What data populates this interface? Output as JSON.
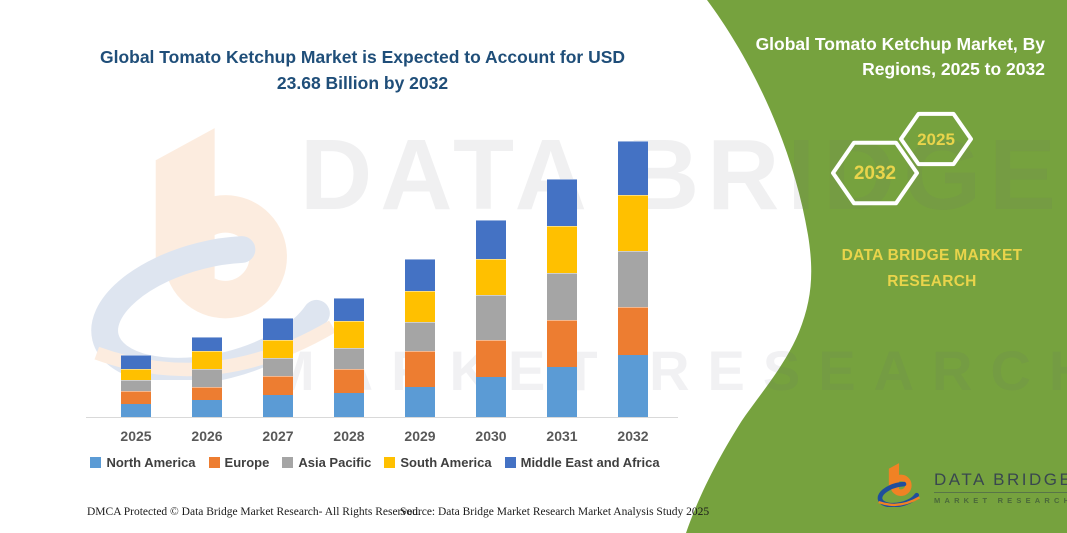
{
  "headline": {
    "line1": "Global Tomato Ketchup Market is Expected to Account for USD",
    "line2": "23.68 Billion by 2032",
    "color": "#1F4E79"
  },
  "banner": {
    "title_line1": "Global Tomato Ketchup Market, By",
    "title_line2": "Regions, 2025 to 2032",
    "hexagon_front_label": "2032",
    "hexagon_back_label": "2025",
    "brand_caption": "DATA BRIDGE MARKET RESEARCH",
    "green": "#76A23E",
    "accent_yellow": "#E9D44B"
  },
  "watermark": {
    "line1": "DATA BRIDGE",
    "line2": "MARKET RESEARCH"
  },
  "logo": {
    "name": "DATA BRIDGE",
    "subtitle": "MARKET RESEARCH"
  },
  "footer": {
    "left": "DMCA Protected © Data Bridge Market Research-  All Rights Reserved.",
    "right": "Source: Data Bridge Market Research  Market Analysis Study 2025"
  },
  "chart_data": {
    "type": "bar",
    "stacked": true,
    "title": "Global Tomato Ketchup Market, By Regions, 2025 to 2032",
    "unit": "USD Billion",
    "categories": [
      "2025",
      "2026",
      "2027",
      "2028",
      "2029",
      "2030",
      "2031",
      "2032"
    ],
    "series": [
      {
        "name": "North America",
        "color": "#5B9BD5",
        "values": [
          1.15,
          1.5,
          1.9,
          2.1,
          2.6,
          3.4,
          4.3,
          5.3
        ]
      },
      {
        "name": "Europe",
        "color": "#ED7D31",
        "values": [
          1.05,
          1.1,
          1.65,
          2.05,
          3.1,
          3.2,
          4.05,
          4.1
        ]
      },
      {
        "name": "Asia Pacific",
        "color": "#A5A5A5",
        "values": [
          1.0,
          1.5,
          1.55,
          1.75,
          2.5,
          3.9,
          4.05,
          4.8
        ]
      },
      {
        "name": "South America",
        "color": "#FFC000",
        "values": [
          0.9,
          1.6,
          1.5,
          2.3,
          2.6,
          3.1,
          4.0,
          4.8
        ]
      },
      {
        "name": "Middle East and Africa",
        "color": "#4472C4",
        "values": [
          1.2,
          1.2,
          1.9,
          2.0,
          2.8,
          3.3,
          4.0,
          4.68
        ]
      }
    ],
    "totals": [
      5.3,
      6.9,
      8.5,
      10.2,
      13.6,
      16.9,
      20.4,
      23.68
    ],
    "ylim": [
      0,
      25
    ],
    "grid": false,
    "y_axis_shown": false,
    "legend_position": "bottom"
  }
}
